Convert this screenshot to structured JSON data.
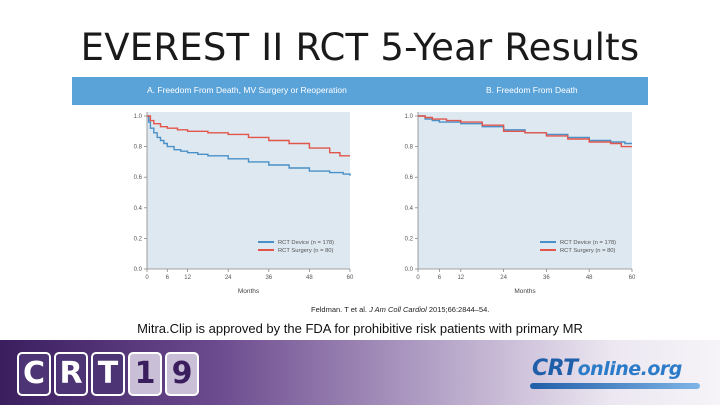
{
  "slide": {
    "title": "EVEREST II RCT 5-Year Results",
    "citation_authors": "Feldman. T et al.",
    "citation_journal": "J Am Coll Cardiol",
    "citation_rest": "2015;66:2844–54.",
    "caption": "Mitra.Clip is approved by the FDA for prohibitive risk patients with primary MR"
  },
  "footer": {
    "logo_letters": [
      "C",
      "R",
      "T",
      "1",
      "9"
    ],
    "site_main": "CRT",
    "site_rest": "online.org"
  },
  "colors": {
    "band": "#5aa3d9",
    "device": "#4a90c8",
    "surgery": "#e2554a",
    "plot_bg": "#dde8f1"
  },
  "chart_data": [
    {
      "type": "line",
      "title": "A. Freedom From Death, MV Surgery or Reoperation",
      "xlabel": "Months",
      "ylabel": "",
      "xlim": [
        0,
        60
      ],
      "ylim": [
        0.0,
        1.0
      ],
      "xticks": [
        "0",
        "6",
        "12",
        "24",
        "36",
        "48",
        "60"
      ],
      "yticks": [
        "0.0",
        "0.2",
        "0.4",
        "0.6",
        "0.8",
        "1.0"
      ],
      "legend_position": "bottom-right",
      "series": [
        {
          "name": "RCT Device (n = 178)",
          "color": "#4a90c8",
          "points": [
            [
              0,
              1.0
            ],
            [
              0.5,
              0.96
            ],
            [
              1,
              0.92
            ],
            [
              2,
              0.89
            ],
            [
              3,
              0.86
            ],
            [
              4,
              0.84
            ],
            [
              5,
              0.82
            ],
            [
              6,
              0.8
            ],
            [
              8,
              0.78
            ],
            [
              10,
              0.77
            ],
            [
              12,
              0.76
            ],
            [
              15,
              0.75
            ],
            [
              18,
              0.74
            ],
            [
              24,
              0.72
            ],
            [
              30,
              0.7
            ],
            [
              36,
              0.68
            ],
            [
              42,
              0.66
            ],
            [
              48,
              0.64
            ],
            [
              54,
              0.63
            ],
            [
              58,
              0.62
            ],
            [
              60,
              0.61
            ]
          ]
        },
        {
          "name": "RCT Surgery (n = 80)",
          "color": "#e2554a",
          "points": [
            [
              0,
              1.0
            ],
            [
              1,
              0.97
            ],
            [
              2,
              0.95
            ],
            [
              4,
              0.93
            ],
            [
              6,
              0.92
            ],
            [
              9,
              0.91
            ],
            [
              12,
              0.9
            ],
            [
              15,
              0.9
            ],
            [
              18,
              0.89
            ],
            [
              24,
              0.88
            ],
            [
              30,
              0.86
            ],
            [
              36,
              0.84
            ],
            [
              42,
              0.82
            ],
            [
              48,
              0.79
            ],
            [
              54,
              0.76
            ],
            [
              57,
              0.74
            ],
            [
              60,
              0.74
            ]
          ]
        }
      ]
    },
    {
      "type": "line",
      "title": "B. Freedom From Death",
      "xlabel": "Months",
      "ylabel": "",
      "xlim": [
        0,
        60
      ],
      "ylim": [
        0.0,
        1.0
      ],
      "xticks": [
        "0",
        "6",
        "12",
        "24",
        "36",
        "48",
        "60"
      ],
      "yticks": [
        "0.0",
        "0.2",
        "0.4",
        "0.6",
        "0.8",
        "1.0"
      ],
      "legend_position": "bottom-right",
      "series": [
        {
          "name": "RCT Device (n = 178)",
          "color": "#4a90c8",
          "points": [
            [
              0,
              1.0
            ],
            [
              2,
              0.98
            ],
            [
              4,
              0.97
            ],
            [
              6,
              0.96
            ],
            [
              10,
              0.96
            ],
            [
              12,
              0.95
            ],
            [
              18,
              0.93
            ],
            [
              24,
              0.91
            ],
            [
              30,
              0.89
            ],
            [
              36,
              0.88
            ],
            [
              42,
              0.86
            ],
            [
              48,
              0.84
            ],
            [
              54,
              0.83
            ],
            [
              58,
              0.82
            ],
            [
              60,
              0.82
            ]
          ]
        },
        {
          "name": "RCT Surgery (n = 80)",
          "color": "#e2554a",
          "points": [
            [
              0,
              1.0
            ],
            [
              2,
              0.99
            ],
            [
              4,
              0.98
            ],
            [
              8,
              0.97
            ],
            [
              12,
              0.96
            ],
            [
              18,
              0.94
            ],
            [
              24,
              0.9
            ],
            [
              30,
              0.89
            ],
            [
              36,
              0.87
            ],
            [
              42,
              0.85
            ],
            [
              48,
              0.83
            ],
            [
              54,
              0.82
            ],
            [
              57,
              0.8
            ],
            [
              60,
              0.8
            ]
          ]
        }
      ]
    }
  ]
}
